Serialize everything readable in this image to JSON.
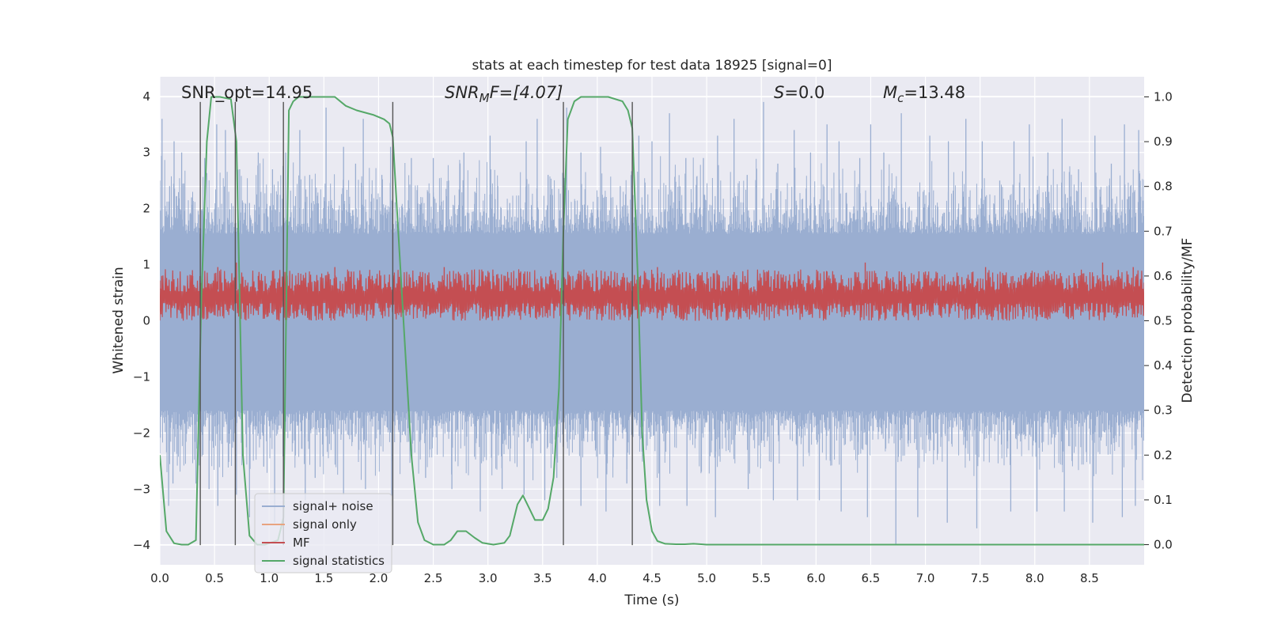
{
  "chart_data": {
    "type": "line",
    "title": "stats at each timestep for test data 18925 [signal=0]",
    "xlabel": "Time (s)",
    "ylabel_left": "Whitened strain",
    "ylabel_right": "Detection probability/MF",
    "xlim": [
      0.0,
      9.0
    ],
    "ylim_left": [
      -4.35,
      4.35
    ],
    "ylim_right": [
      -0.045,
      1.045
    ],
    "xticks": [
      "0.0",
      "0.5",
      "1.0",
      "1.5",
      "2.0",
      "2.5",
      "3.0",
      "3.5",
      "4.0",
      "4.5",
      "5.0",
      "5.5",
      "6.0",
      "6.5",
      "7.0",
      "7.5",
      "8.0",
      "8.5"
    ],
    "yticks_left": [
      "4",
      "3",
      "2",
      "1",
      "0",
      "−1",
      "−2",
      "−3",
      "−4"
    ],
    "yticks_right": [
      "1.0",
      "0.9",
      "0.8",
      "0.7",
      "0.6",
      "0.5",
      "0.4",
      "0.3",
      "0.2",
      "0.1",
      "0.0"
    ],
    "grid": true,
    "legend_position": "lower-left",
    "annotations": {
      "snr_opt": "SNR_opt=14.95",
      "snr_mf_base": "SNR",
      "snr_mf_sub": "M",
      "snr_mf_rest": "F=[4.07]",
      "s_label": "S",
      "s_value": "=0.0",
      "mc_base": "M",
      "mc_sub": "c",
      "mc_value": "=13.48"
    },
    "vertical_lines_x": [
      0.37,
      0.69,
      1.13,
      2.13,
      3.69,
      4.32
    ],
    "series": [
      {
        "name": "signal+ noise",
        "axis": "left",
        "color": "#9aaed1",
        "description_band": {
          "low": -1.6,
          "high": 1.55
        },
        "peak_samples": {
          "x": [
            0.02,
            0.09,
            0.13,
            0.2,
            0.29,
            0.41,
            0.52,
            0.6,
            0.73,
            0.82,
            0.9,
            1.03,
            1.15,
            1.28,
            1.37,
            1.52,
            1.68,
            1.79,
            1.86,
            2.03,
            2.11,
            2.3,
            2.39,
            2.5,
            2.64,
            2.78,
            2.88,
            3.02,
            3.2,
            3.35,
            3.45,
            3.55,
            3.72,
            3.85,
            4.03,
            4.21,
            4.38,
            4.5,
            4.66,
            4.81,
            4.97,
            5.1,
            5.25,
            5.37,
            5.52,
            5.65,
            5.8,
            5.95,
            6.1,
            6.21,
            6.4,
            6.5,
            6.62,
            6.78,
            6.93,
            7.04,
            7.21,
            7.37,
            7.52,
            7.68,
            7.81,
            7.95,
            8.12,
            8.25,
            8.4,
            8.55,
            8.7,
            8.82,
            8.95
          ],
          "y": [
            3.6,
            2.4,
            3.2,
            3.0,
            2.2,
            2.9,
            3.5,
            3.4,
            2.7,
            2.1,
            3.0,
            2.7,
            3.0,
            3.4,
            2.6,
            3.8,
            3.1,
            2.8,
            3.6,
            2.6,
            3.1,
            2.9,
            2.1,
            2.9,
            2.5,
            3.0,
            2.3,
            3.3,
            2.1,
            3.2,
            3.6,
            2.6,
            3.8,
            3.0,
            3.1,
            2.4,
            3.3,
            3.2,
            3.7,
            2.9,
            2.9,
            3.3,
            3.6,
            2.6,
            3.9,
            2.8,
            3.4,
            3.0,
            3.5,
            3.2,
            2.9,
            3.5,
            3.0,
            3.7,
            2.3,
            3.3,
            3.2,
            3.6,
            3.2,
            2.5,
            3.2,
            3.5,
            3.0,
            3.6,
            2.7,
            3.3,
            2.8,
            3.5,
            3.4
          ]
        },
        "trough_samples": {
          "x": [
            0.08,
            0.12,
            0.33,
            0.45,
            0.53,
            0.7,
            0.82,
            0.95,
            1.05,
            1.13,
            1.33,
            1.42,
            1.68,
            1.88,
            2.12,
            2.43,
            2.67,
            2.93,
            3.13,
            3.33,
            3.52,
            3.63,
            3.85,
            4.08,
            4.27,
            4.57,
            4.82,
            5.08,
            5.38,
            5.61,
            5.83,
            6.03,
            6.23,
            6.47,
            6.73,
            6.93,
            7.2,
            7.47,
            7.78,
            8.02,
            8.27,
            8.53,
            8.8,
            8.92
          ],
          "y": [
            -3.3,
            -2.9,
            -2.9,
            -3.0,
            -3.3,
            -3.1,
            -3.5,
            -2.6,
            -3.6,
            -2.7,
            -3.2,
            -2.8,
            -3.1,
            -3.0,
            -3.3,
            -2.8,
            -3.0,
            -3.4,
            -3.0,
            -3.1,
            -3.2,
            -2.8,
            -3.3,
            -3.4,
            -2.9,
            -3.3,
            -3.3,
            -3.5,
            -3.0,
            -3.2,
            -3.2,
            -3.2,
            -3.4,
            -3.5,
            -4.0,
            -3.5,
            -3.6,
            -3.7,
            -3.4,
            -3.4,
            -3.4,
            -3.6,
            -3.5,
            -3.3
          ]
        }
      },
      {
        "name": "signal only",
        "axis": "left",
        "color": "#e8a37f",
        "x": [],
        "y": []
      },
      {
        "name": "MF",
        "axis": "right",
        "color": "#c44e52",
        "description_band": {
          "low": 0.5,
          "high": 0.6
        },
        "peak_samples": {
          "x": [
            0.0,
            0.3,
            0.53,
            0.7,
            0.9,
            1.13,
            1.3,
            1.6,
            1.75,
            1.95,
            2.2,
            2.37,
            2.6,
            2.85,
            3.05,
            3.3,
            3.6,
            3.85,
            4.1,
            4.32,
            4.55,
            4.85,
            5.1,
            5.35,
            5.55,
            5.85,
            6.1,
            6.45,
            6.7,
            7.0,
            7.3,
            7.55,
            7.8,
            8.1,
            8.4,
            8.62,
            8.9
          ],
          "y": [
            0.59,
            0.6,
            0.62,
            0.63,
            0.6,
            0.61,
            0.59,
            0.62,
            0.61,
            0.59,
            0.61,
            0.6,
            0.62,
            0.59,
            0.6,
            0.61,
            0.59,
            0.61,
            0.6,
            0.59,
            0.62,
            0.6,
            0.59,
            0.6,
            0.61,
            0.59,
            0.61,
            0.63,
            0.59,
            0.61,
            0.6,
            0.62,
            0.6,
            0.61,
            0.6,
            0.63,
            0.62
          ]
        }
      },
      {
        "name": "signal statistics",
        "axis": "right",
        "color": "#55a868",
        "x": [
          0.0,
          0.06,
          0.13,
          0.2,
          0.26,
          0.33,
          0.38,
          0.43,
          0.47,
          0.55,
          0.65,
          0.7,
          0.76,
          0.82,
          0.89,
          0.96,
          1.02,
          1.08,
          1.13,
          1.18,
          1.22,
          1.27,
          1.35,
          1.5,
          1.6,
          1.7,
          1.8,
          1.95,
          2.05,
          2.1,
          2.13,
          2.18,
          2.24,
          2.3,
          2.36,
          2.42,
          2.5,
          2.6,
          2.66,
          2.72,
          2.8,
          2.88,
          2.95,
          3.05,
          3.15,
          3.2,
          3.27,
          3.32,
          3.38,
          3.43,
          3.5,
          3.55,
          3.6,
          3.65,
          3.69,
          3.73,
          3.79,
          3.85,
          3.95,
          4.1,
          4.23,
          4.28,
          4.32,
          4.37,
          4.41,
          4.45,
          4.5,
          4.55,
          4.62,
          4.72,
          4.8,
          4.88,
          5.0,
          9.0
        ],
        "y": [
          0.2,
          0.03,
          0.003,
          0.0,
          0.0,
          0.01,
          0.55,
          0.9,
          1.0,
          1.0,
          0.995,
          0.9,
          0.2,
          0.02,
          0.0,
          0.0,
          0.005,
          0.01,
          0.06,
          0.97,
          0.99,
          1.0,
          1.0,
          1.0,
          1.0,
          0.98,
          0.97,
          0.96,
          0.95,
          0.94,
          0.91,
          0.7,
          0.45,
          0.2,
          0.05,
          0.01,
          0.0,
          0.0,
          0.01,
          0.03,
          0.03,
          0.015,
          0.004,
          0.0,
          0.004,
          0.02,
          0.09,
          0.11,
          0.08,
          0.055,
          0.055,
          0.08,
          0.15,
          0.35,
          0.7,
          0.95,
          0.99,
          1.0,
          1.0,
          1.0,
          0.99,
          0.97,
          0.93,
          0.6,
          0.25,
          0.1,
          0.03,
          0.008,
          0.002,
          0.001,
          0.001,
          0.002,
          0.0,
          0.0
        ]
      }
    ]
  }
}
